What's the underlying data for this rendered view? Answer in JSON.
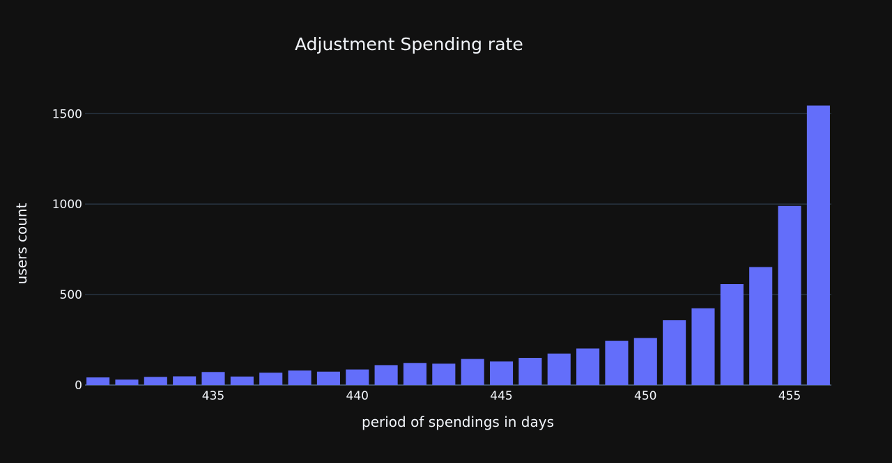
{
  "chart_data": {
    "type": "bar",
    "title": "Adjustment Spending rate",
    "xlabel": "period of spendings in days",
    "ylabel": "users count",
    "x": [
      431,
      432,
      433,
      434,
      435,
      436,
      437,
      438,
      439,
      440,
      441,
      442,
      443,
      444,
      445,
      446,
      447,
      448,
      449,
      450,
      451,
      452,
      453,
      454,
      455,
      456
    ],
    "values": [
      42,
      30,
      45,
      48,
      72,
      47,
      68,
      80,
      74,
      86,
      110,
      122,
      118,
      144,
      130,
      150,
      174,
      202,
      244,
      260,
      358,
      424,
      558,
      652,
      990,
      1545
    ],
    "xticks": [
      435,
      440,
      445,
      450,
      455
    ],
    "yticks": [
      0,
      500,
      1000,
      1500
    ],
    "xlim": [
      430.55,
      456.45
    ],
    "ylim": [
      0,
      1628
    ],
    "bar_color": "#636efa",
    "background": "#111111",
    "grid": true
  }
}
